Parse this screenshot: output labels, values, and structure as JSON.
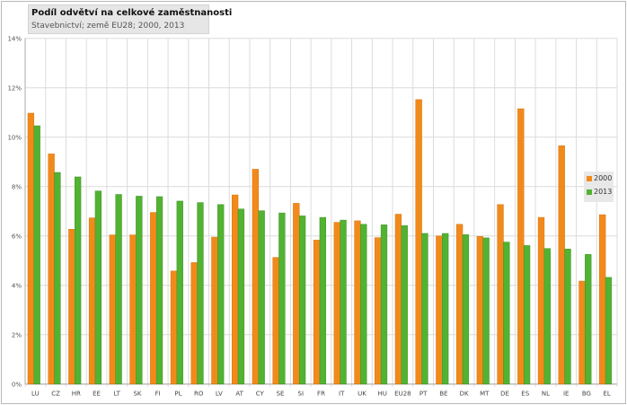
{
  "chart_data": {
    "type": "bar",
    "title": "Podíl odvětví na celkové zaměstnanosti",
    "subtitle": "Stavebnictví; země EU28; 2000, 2013",
    "xlabel": "",
    "ylabel": "",
    "ylim": [
      0,
      14
    ],
    "yticks": [
      "0%",
      "2%",
      "4%",
      "6%",
      "8%",
      "10%",
      "12%",
      "14%"
    ],
    "grid": true,
    "legend_position": "right",
    "categories": [
      "LU",
      "CZ",
      "HR",
      "EE",
      "LT",
      "SK",
      "FI",
      "PL",
      "RO",
      "LV",
      "AT",
      "CY",
      "SE",
      "SI",
      "FR",
      "IT",
      "UK",
      "HU",
      "EU28",
      "PT",
      "BE",
      "DK",
      "MT",
      "DE",
      "ES",
      "NL",
      "IE",
      "BG",
      "EL"
    ],
    "series": [
      {
        "name": "2000",
        "color": "#f28a1b",
        "values": [
          10.97,
          9.32,
          6.27,
          6.73,
          6.04,
          6.04,
          6.95,
          4.58,
          4.92,
          5.95,
          7.66,
          8.7,
          5.13,
          7.32,
          5.83,
          6.55,
          6.61,
          5.93,
          6.88,
          11.52,
          6.0,
          6.47,
          5.98,
          7.27,
          11.15,
          6.75,
          9.65,
          4.17,
          6.86
        ]
      },
      {
        "name": "2013",
        "color": "#52b232",
        "values": [
          10.46,
          8.57,
          8.39,
          7.82,
          7.68,
          7.61,
          7.59,
          7.41,
          7.35,
          7.27,
          7.09,
          7.02,
          6.93,
          6.81,
          6.75,
          6.64,
          6.47,
          6.45,
          6.42,
          6.1,
          6.1,
          6.05,
          5.92,
          5.75,
          5.61,
          5.49,
          5.47,
          5.25,
          4.32
        ]
      }
    ]
  }
}
